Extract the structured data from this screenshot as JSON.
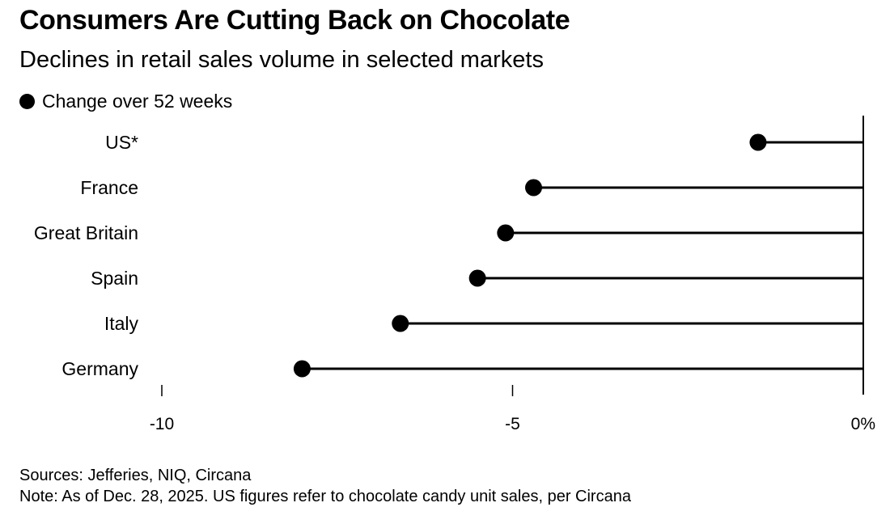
{
  "chart_data": {
    "type": "dot",
    "title": "Consumers Are Cutting Back on Chocolate",
    "subtitle": "Declines in retail sales volume in selected markets",
    "legend": [
      {
        "label": "Change over 52 weeks",
        "color": "#000000"
      }
    ],
    "categories": [
      "US*",
      "France",
      "Great Britain",
      "Spain",
      "Italy",
      "Germany"
    ],
    "series": [
      {
        "name": "Change over 52 weeks",
        "values": [
          -1.5,
          -4.7,
          -5.1,
          -5.5,
          -6.6,
          -8.0
        ]
      }
    ],
    "xlim": [
      -10,
      0
    ],
    "xticks": [
      {
        "value": -10,
        "label": "-10"
      },
      {
        "value": -5,
        "label": "-5"
      },
      {
        "value": 0,
        "label": "0%"
      }
    ],
    "xlabel": "",
    "ylabel": "",
    "grid": false
  },
  "footer": {
    "sources": "Sources: Jefferies, NIQ, Circana",
    "note": "Note: As of Dec. 28, 2025. US figures refer to chocolate candy unit sales, per Circana"
  }
}
